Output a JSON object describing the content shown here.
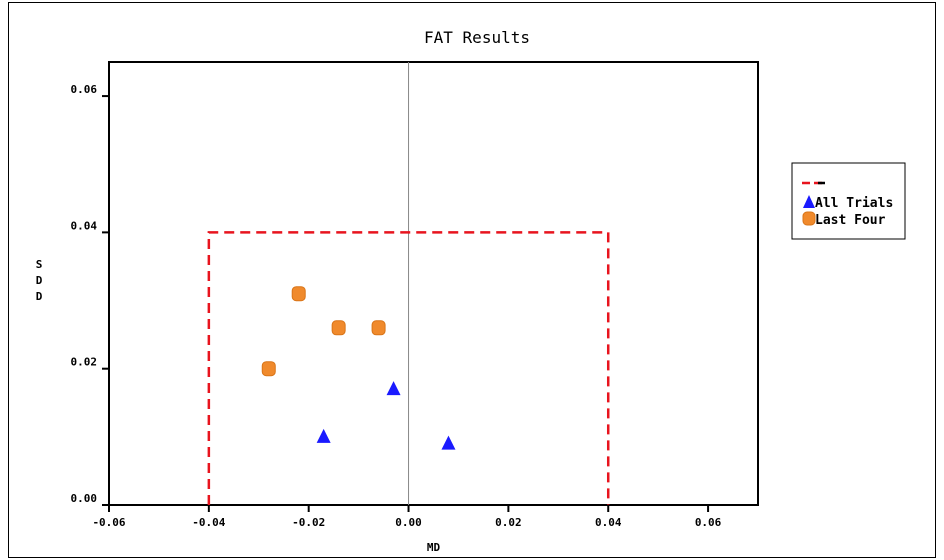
{
  "chart_data": {
    "type": "scatter",
    "title": "FAT Results",
    "xlabel": "MD",
    "ylabel": "SDD",
    "xlim": [
      -0.06,
      0.07
    ],
    "ylim": [
      0.0,
      0.065
    ],
    "xticks": [
      "-0.06",
      "-0.04",
      "-0.02",
      "0.00",
      "0.02",
      "0.04",
      "0.06"
    ],
    "xtick_values": [
      -0.06,
      -0.04,
      -0.02,
      0.0,
      0.02,
      0.04,
      0.06
    ],
    "yticks": [
      "0.00",
      "0.02",
      "0.04",
      "0.06"
    ],
    "ytick_values": [
      0.0,
      0.02,
      0.04,
      0.06
    ],
    "reference_line": {
      "x": 0.0,
      "color": "#888888"
    },
    "limit_box": {
      "name": "",
      "x0": -0.04,
      "x1": 0.04,
      "y0": 0.0,
      "y1": 0.04,
      "color": "#e8141e"
    },
    "series": [
      {
        "name": "All Trials",
        "marker": "triangle",
        "color": "#1a1aff",
        "points": [
          [
            -0.017,
            0.01
          ],
          [
            -0.003,
            0.017
          ],
          [
            0.008,
            0.009
          ]
        ]
      },
      {
        "name": "Last Four",
        "marker": "circle",
        "color": "#f08a2c",
        "points": [
          [
            -0.028,
            0.02
          ],
          [
            -0.022,
            0.031
          ],
          [
            -0.014,
            0.026
          ],
          [
            -0.006,
            0.026
          ]
        ]
      }
    ],
    "grid": false,
    "legend": "right"
  }
}
